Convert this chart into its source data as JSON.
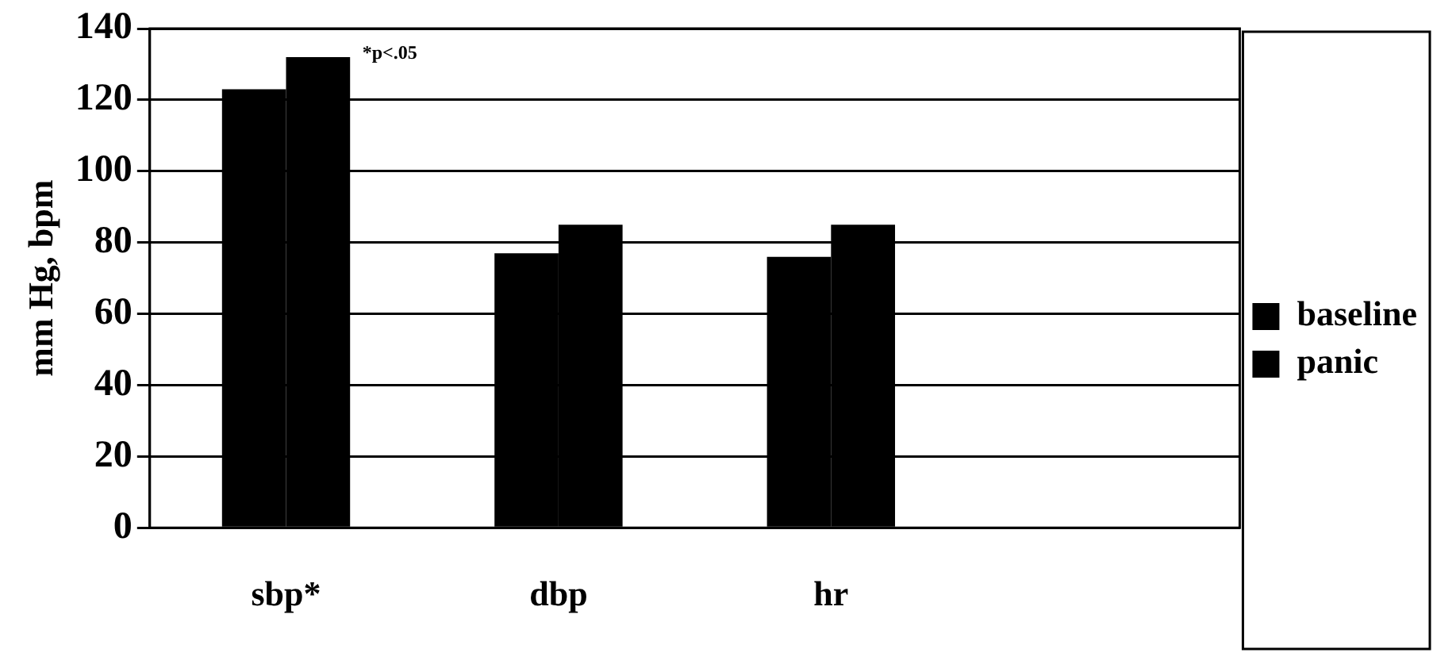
{
  "chart_data": {
    "type": "bar",
    "ylabel": "mm Hg, bpm",
    "categories": [
      "sbp*",
      "dbp",
      "hr",
      null
    ],
    "series": [
      {
        "name": "baseline",
        "color": "#000000",
        "values": [
          123,
          77,
          76,
          null
        ]
      },
      {
        "name": "panic",
        "color": "#000000",
        "values": [
          132,
          85,
          85,
          null
        ]
      }
    ],
    "ylim": [
      0,
      140
    ],
    "yticks": [
      0,
      20,
      40,
      60,
      80,
      100,
      120,
      140
    ],
    "grid": "y",
    "legend": "right",
    "annotations": [
      "*p<.05"
    ]
  }
}
